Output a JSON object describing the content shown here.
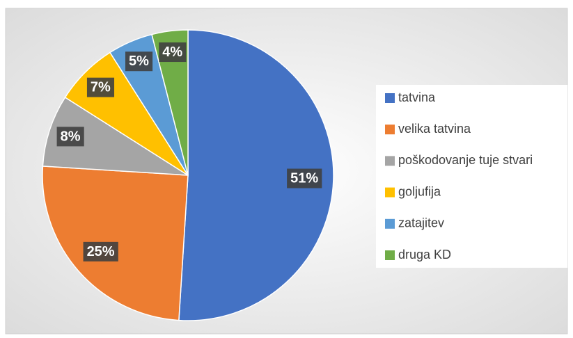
{
  "chart_data": {
    "type": "pie",
    "categories": [
      "tatvina",
      "velika tatvina",
      "poškodovanje tuje stvari",
      "goljufija",
      "zatajitev",
      "druga KD"
    ],
    "values": [
      51,
      25,
      8,
      7,
      5,
      4
    ],
    "value_labels": [
      "51%",
      "25%",
      "8%",
      "7%",
      "5%",
      "4%"
    ],
    "colors": [
      "#4472c4",
      "#ed7d31",
      "#a5a5a5",
      "#ffc000",
      "#5b9bd5",
      "#70ad47"
    ],
    "legend": "right"
  }
}
